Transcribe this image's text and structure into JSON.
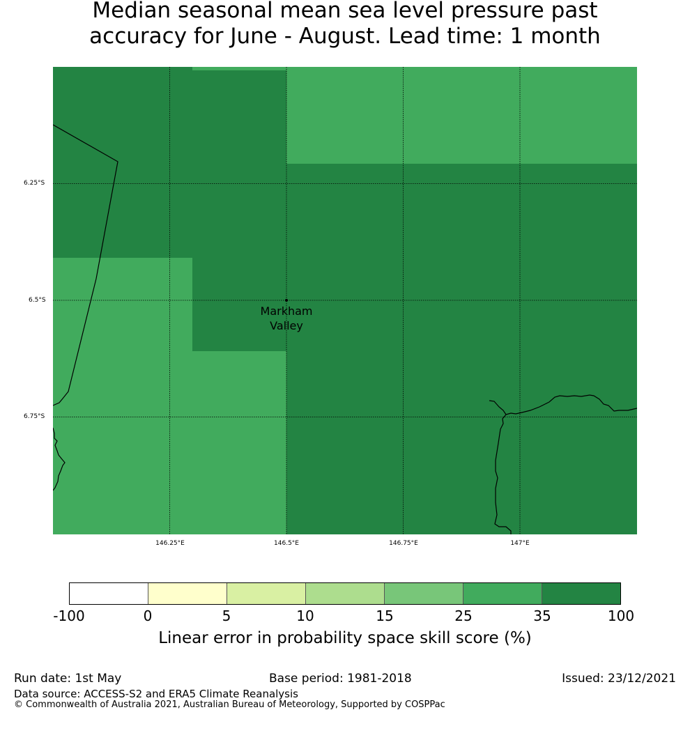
{
  "title": {
    "line1": "Median seasonal mean sea level pressure past",
    "line2": "accuracy for June - August. Lead time: 1 month"
  },
  "map": {
    "extent": {
      "lon_min": 146.0,
      "lon_max": 147.25,
      "lat_north": -6.0,
      "lat_south": -7.0
    },
    "latitude_labels": [
      "6.25°S",
      "6.5°S",
      "6.75°S"
    ],
    "longitude_labels": [
      "146.25°E",
      "146.5°E",
      "146.75°E",
      "147°E"
    ],
    "place": {
      "name_line1": "Markham",
      "name_line2": "Valley",
      "lon": 146.5,
      "lat": -6.5
    },
    "cell_colors": {
      "skill_25_35": "#41ab5d",
      "skill_35_100": "#238443"
    }
  },
  "colorbar": {
    "colors": [
      "#ffffff",
      "#ffffcc",
      "#d9f0a3",
      "#addd8e",
      "#78c679",
      "#41ab5d",
      "#238443"
    ],
    "tick_labels": [
      "-100",
      "0",
      "5",
      "10",
      "15",
      "25",
      "35",
      "100"
    ],
    "label": "Linear error in probability space skill score (%)"
  },
  "footer": {
    "run_date": "Run date: 1st May",
    "base_period": "Base period: 1981-2018",
    "issued": "Issued: 23/12/2021",
    "data_source": "Data source: ACCESS-S2 and ERA5 Climate Reanalysis",
    "copyright": "© Commonwealth of Australia 2021, Australian Bureau of Meteorology, Supported by COSPPac"
  }
}
